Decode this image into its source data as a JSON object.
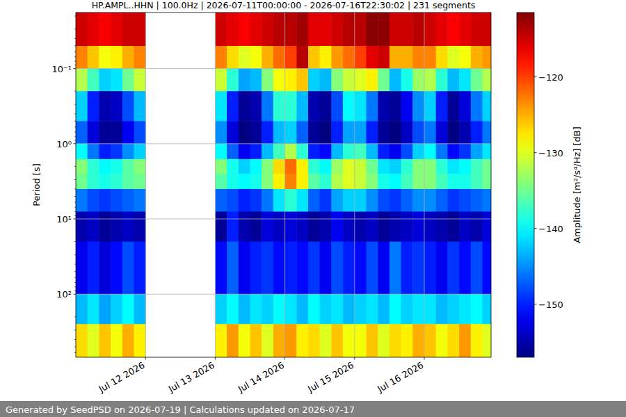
{
  "chart_data": {
    "type": "heatmap",
    "title": "HP.AMPL..HHN | 100.0Hz | 2026-07-11T00:00:00 - 2026-07-16T22:30:02 | 231 segments",
    "y_label": "Period [s]",
    "log": "y",
    "grid": true,
    "xlim": [
      "2026-07-11T00:00",
      "2026-07-16T23:00"
    ],
    "ylim": [
      0.018,
      690
    ],
    "xticks": [
      {
        "value": "2026-07-12T00:00",
        "label": "Jul 12 2026"
      },
      {
        "value": "2026-07-13T00:00",
        "label": "Jul 13 2026"
      },
      {
        "value": "2026-07-14T00:00",
        "label": "Jul 14 2026"
      },
      {
        "value": "2026-07-15T00:00",
        "label": "Jul 15 2026"
      },
      {
        "value": "2026-07-16T00:00",
        "label": "Jul 16 2026"
      }
    ],
    "yticks": [
      {
        "value": 0.1,
        "label": "10⁻¹"
      },
      {
        "value": 1,
        "label": "10⁰"
      },
      {
        "value": 10,
        "label": "10¹"
      },
      {
        "value": 100,
        "label": "10²"
      }
    ],
    "x_bins": [
      "2026-07-11T00:00",
      "2026-07-11T04:00",
      "2026-07-11T08:00",
      "2026-07-11T12:00",
      "2026-07-11T16:00",
      "2026-07-11T20:00",
      "2026-07-12T00:00",
      "2026-07-12T04:00",
      "2026-07-12T08:00",
      "2026-07-12T12:00",
      "2026-07-12T16:00",
      "2026-07-12T20:00",
      "2026-07-13T00:00",
      "2026-07-13T04:00",
      "2026-07-13T08:00",
      "2026-07-13T12:00",
      "2026-07-13T16:00",
      "2026-07-13T20:00",
      "2026-07-14T00:00",
      "2026-07-14T04:00",
      "2026-07-14T08:00",
      "2026-07-14T12:00",
      "2026-07-14T16:00",
      "2026-07-14T20:00",
      "2026-07-15T00:00",
      "2026-07-15T04:00",
      "2026-07-15T08:00",
      "2026-07-15T12:00",
      "2026-07-15T16:00",
      "2026-07-15T20:00",
      "2026-07-16T00:00",
      "2026-07-16T04:00",
      "2026-07-16T08:00",
      "2026-07-16T12:00",
      "2026-07-16T16:00",
      "2026-07-16T20:00",
      "2026-07-17T00:00"
    ],
    "y_bins": [
      0.018,
      0.05,
      0.1,
      0.2,
      0.5,
      1,
      1.6,
      2.5,
      4,
      8,
      20,
      100,
      250,
      690
    ],
    "values": [
      [
        -115,
        -116,
        -117,
        -116,
        -115,
        -115,
        null,
        null,
        null,
        null,
        null,
        null,
        -115,
        -116,
        -117,
        -116,
        -115,
        -114,
        -114,
        -113,
        -116,
        -116,
        -115,
        -114,
        -114,
        -112,
        -112,
        -115,
        -115,
        -114,
        -115,
        -116,
        -117,
        -116,
        -115,
        -115
      ],
      [
        -123,
        -126,
        -129,
        -128,
        -125,
        -123,
        null,
        null,
        null,
        null,
        null,
        null,
        -123,
        -127,
        -130,
        -129,
        -125,
        -122,
        -120,
        -114,
        -126,
        -128,
        -124,
        -122,
        -120,
        -116,
        -115,
        -125,
        -125,
        -123,
        -123,
        -127,
        -130,
        -129,
        -125,
        -124
      ],
      [
        -132,
        -137,
        -142,
        -141,
        -135,
        -131,
        null,
        null,
        null,
        null,
        null,
        null,
        -131,
        -138,
        -144,
        -143,
        -134,
        -129,
        -128,
        -126,
        -142,
        -143,
        -134,
        -131,
        -130,
        -128,
        -135,
        -143,
        -139,
        -133,
        -132,
        -138,
        -143,
        -141,
        -135,
        -132
      ],
      [
        -142,
        -150,
        -155,
        -154,
        -148,
        -143,
        null,
        null,
        null,
        null,
        null,
        null,
        -141,
        -150,
        -156,
        -155,
        -146,
        -138,
        -138,
        -143,
        -155,
        -156,
        -148,
        -140,
        -141,
        -146,
        -155,
        -156,
        -152,
        -145,
        -142,
        -150,
        -156,
        -153,
        -146,
        -142
      ],
      [
        -147,
        -153,
        -156,
        -156,
        -152,
        -148,
        null,
        null,
        null,
        null,
        null,
        null,
        -145,
        -153,
        -157,
        -156,
        -150,
        -143,
        -142,
        -147,
        -156,
        -157,
        -150,
        -144,
        -144,
        -150,
        -156,
        -157,
        -154,
        -148,
        -146,
        -153,
        -157,
        -155,
        -150,
        -146
      ],
      [
        -140,
        -146,
        -150,
        -149,
        -145,
        -142,
        null,
        null,
        null,
        null,
        null,
        null,
        -140,
        -147,
        -152,
        -150,
        -143,
        -137,
        -132,
        -138,
        -150,
        -151,
        -143,
        -138,
        -137,
        -143,
        -150,
        -152,
        -148,
        -142,
        -140,
        -146,
        -151,
        -149,
        -144,
        -141
      ],
      [
        -134,
        -138,
        -140,
        -139,
        -136,
        -134,
        null,
        null,
        null,
        null,
        null,
        null,
        -134,
        -139,
        -142,
        -140,
        -134,
        -127,
        -122,
        -128,
        -138,
        -140,
        -133,
        -130,
        -131,
        -135,
        -141,
        -142,
        -138,
        -134,
        -134,
        -138,
        -141,
        -140,
        -137,
        -135
      ],
      [
        -135,
        -138,
        -139,
        -138,
        -136,
        -135,
        null,
        null,
        null,
        null,
        null,
        null,
        -136,
        -139,
        -140,
        -139,
        -134,
        -128,
        -123,
        -128,
        -136,
        -138,
        -132,
        -130,
        -131,
        -134,
        -139,
        -140,
        -137,
        -134,
        -134,
        -137,
        -139,
        -139,
        -137,
        -135
      ],
      [
        -146,
        -148,
        -149,
        -148,
        -147,
        -146,
        null,
        null,
        null,
        null,
        null,
        null,
        -147,
        -148,
        -150,
        -149,
        -146,
        -141,
        -138,
        -141,
        -147,
        -149,
        -144,
        -142,
        -142,
        -145,
        -148,
        -149,
        -147,
        -145,
        -145,
        -147,
        -149,
        -148,
        -147,
        -146
      ],
      [
        -155,
        -154,
        -156,
        -155,
        -154,
        -155,
        null,
        null,
        null,
        null,
        null,
        null,
        -156,
        -150,
        -155,
        -156,
        -153,
        -154,
        -153,
        -154,
        -156,
        -155,
        -152,
        -154,
        -155,
        -154,
        -156,
        -155,
        -154,
        -153,
        -154,
        -155,
        -156,
        -154,
        -155,
        -153
      ],
      [
        -152,
        -150,
        -153,
        -151,
        -148,
        -150,
        null,
        null,
        null,
        null,
        null,
        null,
        -151,
        -147,
        -152,
        -150,
        -149,
        -151,
        -150,
        -151,
        -149,
        -152,
        -148,
        -150,
        -151,
        -148,
        -152,
        -146,
        -150,
        -149,
        -150,
        -152,
        -149,
        -151,
        -148,
        -151
      ],
      [
        -143,
        -141,
        -144,
        -142,
        -140,
        -143,
        null,
        null,
        null,
        null,
        null,
        null,
        -142,
        -140,
        -143,
        -141,
        -142,
        -140,
        -141,
        -143,
        -140,
        -142,
        -141,
        -143,
        -142,
        -141,
        -143,
        -140,
        -142,
        -141,
        -141,
        -143,
        -142,
        -141,
        -140,
        -142
      ],
      [
        -127,
        -130,
        -126,
        -129,
        -125,
        -128,
        null,
        null,
        null,
        null,
        null,
        null,
        -128,
        -124,
        -129,
        -126,
        -130,
        -125,
        -124,
        -128,
        -127,
        -130,
        -126,
        -129,
        -129,
        -126,
        -130,
        -127,
        -128,
        -125,
        -126,
        -129,
        -127,
        -124,
        -128,
        -130
      ]
    ],
    "colorbar": {
      "label": "Amplitude [m²/s⁴/Hz] [dB]",
      "range": [
        -157,
        -111.5
      ],
      "ticks": [
        {
          "value": -150,
          "label": "−150"
        },
        {
          "value": -140,
          "label": "−140"
        },
        {
          "value": -130,
          "label": "−130"
        },
        {
          "value": -120,
          "label": "−120"
        }
      ]
    }
  },
  "footer": "Generated by SeedPSD on 2026-07-19 | Calculations updated on 2026-07-17"
}
